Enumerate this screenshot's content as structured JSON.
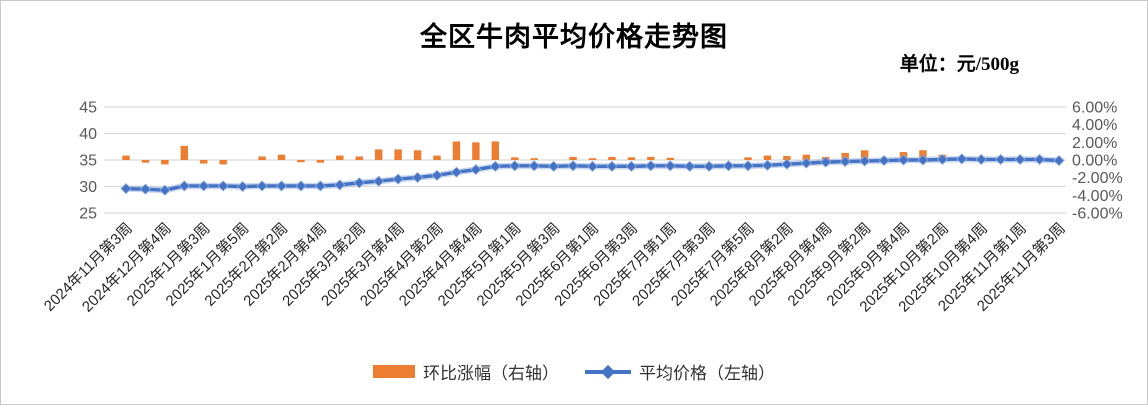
{
  "title": "全区牛肉平均价格走势图",
  "unit_label": "单位：元/500g",
  "colors": {
    "bar": "#ED7D31",
    "line": "#4472C4",
    "line_halo": "#8EAADB",
    "grid": "#D9D9D9",
    "axis_text": "#595959",
    "xlabel_text": "#262626"
  },
  "legend": [
    {
      "label": "环比涨幅（右轴）",
      "type": "bar"
    },
    {
      "label": "平均价格（左轴）",
      "type": "line"
    }
  ],
  "chart_data": {
    "type": "combo",
    "title": "全区牛肉平均价格走势图",
    "unit": "元/500g",
    "grid": true,
    "legend_position": "bottom",
    "tick_labels": [
      "2024年11月第3周",
      "2024年12月第4周",
      "2025年1月第3周",
      "2025年1月第5周",
      "2025年2月第2周",
      "2025年2月第4周",
      "2025年3月第2周",
      "2025年3月第4周",
      "2025年4月第2周",
      "2025年4月第4周",
      "2025年5月第1周",
      "2025年5月第3周",
      "2025年6月第1周",
      "2025年6月第3周",
      "2025年7月第1周",
      "2025年7月第3周",
      "2025年7月第5周",
      "2025年8月第2周",
      "2025年8月第4周",
      "2025年9月第2周",
      "2025年9月第4周",
      "2025年10月第2周",
      "2025年10月第4周",
      "2025年11月第1周",
      "2025年11月第3周"
    ],
    "label_every": 2,
    "left_axis": {
      "min": 25,
      "max": 45,
      "ticks": [
        45,
        40,
        35,
        30,
        25
      ],
      "label": "平均价格"
    },
    "right_axis": {
      "min": -6,
      "max": 6,
      "tick_labels": [
        "6.00%",
        "4.00%",
        "2.00%",
        "0.00%",
        "-2.00%",
        "-4.00%",
        "-6.00%"
      ],
      "label": "环比涨幅"
    },
    "series": [
      {
        "name": "环比涨幅（右轴）",
        "type": "bar",
        "axis": "right",
        "unit": "%",
        "values": [
          0.5,
          -0.3,
          -0.5,
          1.6,
          -0.4,
          -0.5,
          0,
          0.4,
          0.6,
          -0.25,
          -0.3,
          0.5,
          0.4,
          1.2,
          1.2,
          1.1,
          0.5,
          2.1,
          2.0,
          2.1,
          0.3,
          0.2,
          0,
          0.35,
          0.2,
          0.35,
          0.3,
          0.35,
          0.25,
          0,
          0,
          0,
          0.3,
          0.5,
          0.45,
          0.6,
          0.35,
          0.8,
          1.1,
          0,
          0.9,
          1.1,
          0.6,
          0,
          -0.1,
          0,
          0,
          -0.2,
          0
        ]
      },
      {
        "name": "平均价格（左轴）",
        "type": "line",
        "axis": "left",
        "unit": "元/500g",
        "values": [
          29.6,
          29.5,
          29.3,
          30.1,
          30.1,
          30.1,
          30.0,
          30.1,
          30.1,
          30.1,
          30.1,
          30.3,
          30.7,
          31.0,
          31.4,
          31.7,
          32.1,
          32.7,
          33.2,
          33.8,
          33.9,
          33.9,
          33.8,
          33.9,
          33.8,
          33.8,
          33.8,
          33.9,
          33.9,
          33.8,
          33.8,
          33.9,
          33.9,
          34.0,
          34.2,
          34.4,
          34.6,
          34.7,
          34.8,
          34.9,
          35.0,
          35.0,
          35.1,
          35.2,
          35.1,
          35.1,
          35.1,
          35.1,
          34.9
        ]
      }
    ]
  }
}
